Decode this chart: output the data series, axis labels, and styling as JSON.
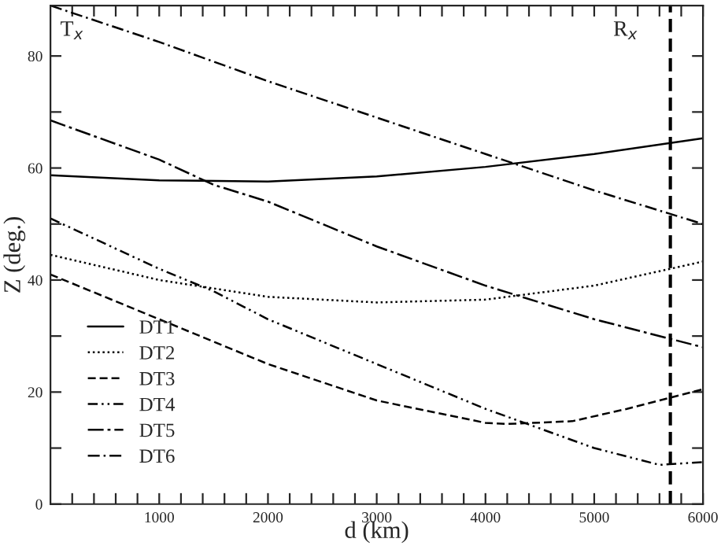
{
  "chart_data": {
    "type": "line",
    "xlabel": "d (km)",
    "ylabel": "Z (deg.)",
    "x": [
      0,
      1000,
      2000,
      3000,
      4000,
      5000,
      6000
    ],
    "series": [
      {
        "name": "DT1",
        "color": "#000000",
        "line_style": "solid",
        "values": [
          58.7,
          57.8,
          57.6,
          58.5,
          60.2,
          62.5,
          65.3
        ]
      },
      {
        "name": "DT2",
        "color": "#000000",
        "line_style": "dotted",
        "values": [
          44.5,
          40,
          37,
          36,
          36.5,
          39,
          43.3
        ]
      },
      {
        "name": "DT3",
        "color": "#000000",
        "line_style": "dashed",
        "x": [
          0,
          1000,
          2000,
          3000,
          4000,
          4200,
          4800,
          5300,
          5700,
          6000
        ],
        "values": [
          41,
          33,
          25,
          18.5,
          14.5,
          14.3,
          14.8,
          17,
          19,
          20.5
        ]
      },
      {
        "name": "DT4",
        "color": "#000000",
        "line_style": "dashdotdot",
        "x": [
          0,
          1000,
          1500,
          2000,
          3000,
          4000,
          5000,
          5600,
          6000
        ],
        "values": [
          51,
          42,
          38,
          33,
          25,
          17,
          10,
          7,
          7.5
        ]
      },
      {
        "name": "DT5",
        "color": "#000000",
        "line_style": "longdashdot",
        "x": [
          0,
          1000,
          1500,
          2000,
          3000,
          4000,
          5000,
          5700,
          6000
        ],
        "values": [
          68.5,
          61.5,
          57,
          54,
          46,
          39,
          33,
          29.5,
          28
        ]
      },
      {
        "name": "DT6",
        "color": "#000000",
        "line_style": "dashdot",
        "values": [
          89,
          82.5,
          75.5,
          69,
          62.5,
          56,
          50
        ]
      }
    ],
    "ref_lines": [
      {
        "axis": "x",
        "value": 5700,
        "color": "#000000",
        "line_style": "dashed"
      }
    ],
    "annotations": [
      "T$_{x}$",
      "R$_{x}$"
    ],
    "xlim": [
      0,
      6000
    ],
    "ylim": [
      0,
      89
    ],
    "xticks": [
      {
        "value": 200,
        "label": null
      },
      {
        "value": 400,
        "label": null
      },
      {
        "value": 600,
        "label": null
      },
      {
        "value": 800,
        "label": null
      },
      1000,
      {
        "value": 1200,
        "label": null
      },
      {
        "value": 1400,
        "label": null
      },
      {
        "value": 1600,
        "label": null
      },
      {
        "value": 1800,
        "label": null
      },
      2000,
      {
        "value": 2200,
        "label": null
      },
      {
        "value": 2400,
        "label": null
      },
      {
        "value": 2600,
        "label": null
      },
      {
        "value": 2800,
        "label": null
      },
      3000,
      {
        "value": 3200,
        "label": null
      },
      {
        "value": 3400,
        "label": null
      },
      {
        "value": 3600,
        "label": null
      },
      {
        "value": 3800,
        "label": null
      },
      4000,
      {
        "value": 4200,
        "label": null
      },
      {
        "value": 4400,
        "label": null
      },
      {
        "value": 4600,
        "label": null
      },
      {
        "value": 4800,
        "label": null
      },
      5000,
      {
        "value": 5200,
        "label": null
      },
      {
        "value": 5400,
        "label": null
      },
      {
        "value": 5600,
        "label": null
      },
      {
        "value": 5800,
        "label": null
      },
      6000
    ],
    "yticks": [
      0,
      {
        "value": 10,
        "label": null
      },
      20,
      {
        "value": 30,
        "label": null
      },
      40,
      {
        "value": 50,
        "label": null
      },
      60,
      {
        "value": 70,
        "label": null
      },
      80
    ],
    "grid": false,
    "legend": "bottom left",
    "marker": "none"
  }
}
